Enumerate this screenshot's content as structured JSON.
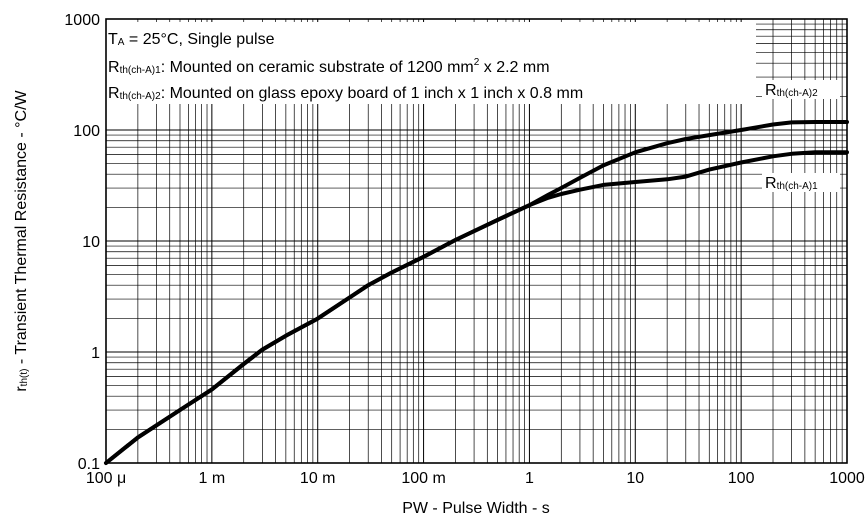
{
  "chart_data": {
    "type": "line",
    "xscale": "log",
    "yscale": "log",
    "xlim": [
      0.0001,
      1000
    ],
    "ylim": [
      0.1,
      1000
    ],
    "grid": true,
    "xlabel": "PW - Pulse Width - s",
    "ylabel": "r",
    "ylabel_sub": "th(t)",
    "ylabel_rest": " - Transient Thermal Resistance - °C/W",
    "xticks": [
      {
        "value": 0.0001,
        "label": "100 μ"
      },
      {
        "value": 0.001,
        "label": "1 m"
      },
      {
        "value": 0.01,
        "label": "10 m"
      },
      {
        "value": 0.1,
        "label": "100 m"
      },
      {
        "value": 1,
        "label": "1"
      },
      {
        "value": 10,
        "label": "10"
      },
      {
        "value": 100,
        "label": "100"
      },
      {
        "value": 1000,
        "label": "1000"
      }
    ],
    "yticks": [
      {
        "value": 0.1,
        "label": "0.1"
      },
      {
        "value": 1,
        "label": "1"
      },
      {
        "value": 10,
        "label": "10"
      },
      {
        "value": 100,
        "label": "100"
      },
      {
        "value": 1000,
        "label": "1000"
      }
    ],
    "annotations": {
      "line1": {
        "t": "T",
        "sub": "A",
        "rest": " = 25°C, Single pulse"
      },
      "line2": {
        "t": "R",
        "sub": "th(ch-A)1",
        "rest": ": Mounted on ceramic substrate of 1200 mm",
        "sup": "2",
        "rest2": " x 2.2 mm"
      },
      "line3": {
        "t": "R",
        "sub": "th(ch-A)2",
        "rest": ": Mounted on glass epoxy board of 1 inch x 1 inch x 0.8 mm"
      }
    },
    "series": [
      {
        "name": "Rth(ch-A)1",
        "label_main": "R",
        "label_sub": "th(ch-A)1",
        "x": [
          0.0001,
          0.0002,
          0.0005,
          0.001,
          0.002,
          0.003,
          0.005,
          0.01,
          0.02,
          0.03,
          0.05,
          0.1,
          0.2,
          0.5,
          1,
          1.5,
          2,
          3,
          5,
          10,
          20,
          30,
          50,
          100,
          200,
          300,
          500,
          1000
        ],
        "y": [
          0.1,
          0.17,
          0.3,
          0.46,
          0.78,
          1.05,
          1.4,
          2.0,
          3.1,
          4.0,
          5.2,
          7.2,
          10.2,
          15.5,
          21,
          24.5,
          26.5,
          29,
          32,
          34,
          36,
          38,
          44,
          51,
          58,
          61,
          63,
          63
        ]
      },
      {
        "name": "Rth(ch-A)2",
        "label_main": "R",
        "label_sub": "th(ch-A)2",
        "x": [
          0.0001,
          0.0002,
          0.0005,
          0.001,
          0.002,
          0.003,
          0.005,
          0.01,
          0.02,
          0.03,
          0.05,
          0.1,
          0.2,
          0.5,
          1,
          1.5,
          2,
          3,
          5,
          10,
          20,
          30,
          50,
          100,
          200,
          300,
          500,
          1000
        ],
        "y": [
          0.1,
          0.17,
          0.3,
          0.46,
          0.78,
          1.05,
          1.4,
          2.0,
          3.1,
          4.0,
          5.2,
          7.2,
          10.2,
          15.5,
          21,
          26,
          30,
          37,
          48,
          63,
          76,
          83,
          90,
          100,
          112,
          117,
          118,
          118
        ]
      }
    ]
  }
}
